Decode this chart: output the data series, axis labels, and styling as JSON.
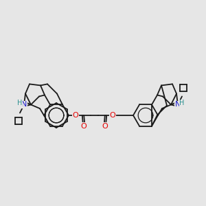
{
  "background_color": "#e6e6e6",
  "bond_color": "#1a1a1a",
  "atom_colors": {
    "O": "#e60000",
    "N": "#1a1acc",
    "H": "#2a9090",
    "C": "#1a1a1a"
  },
  "figsize": [
    3.0,
    3.0
  ],
  "dpi": 100,
  "lw": 1.3
}
